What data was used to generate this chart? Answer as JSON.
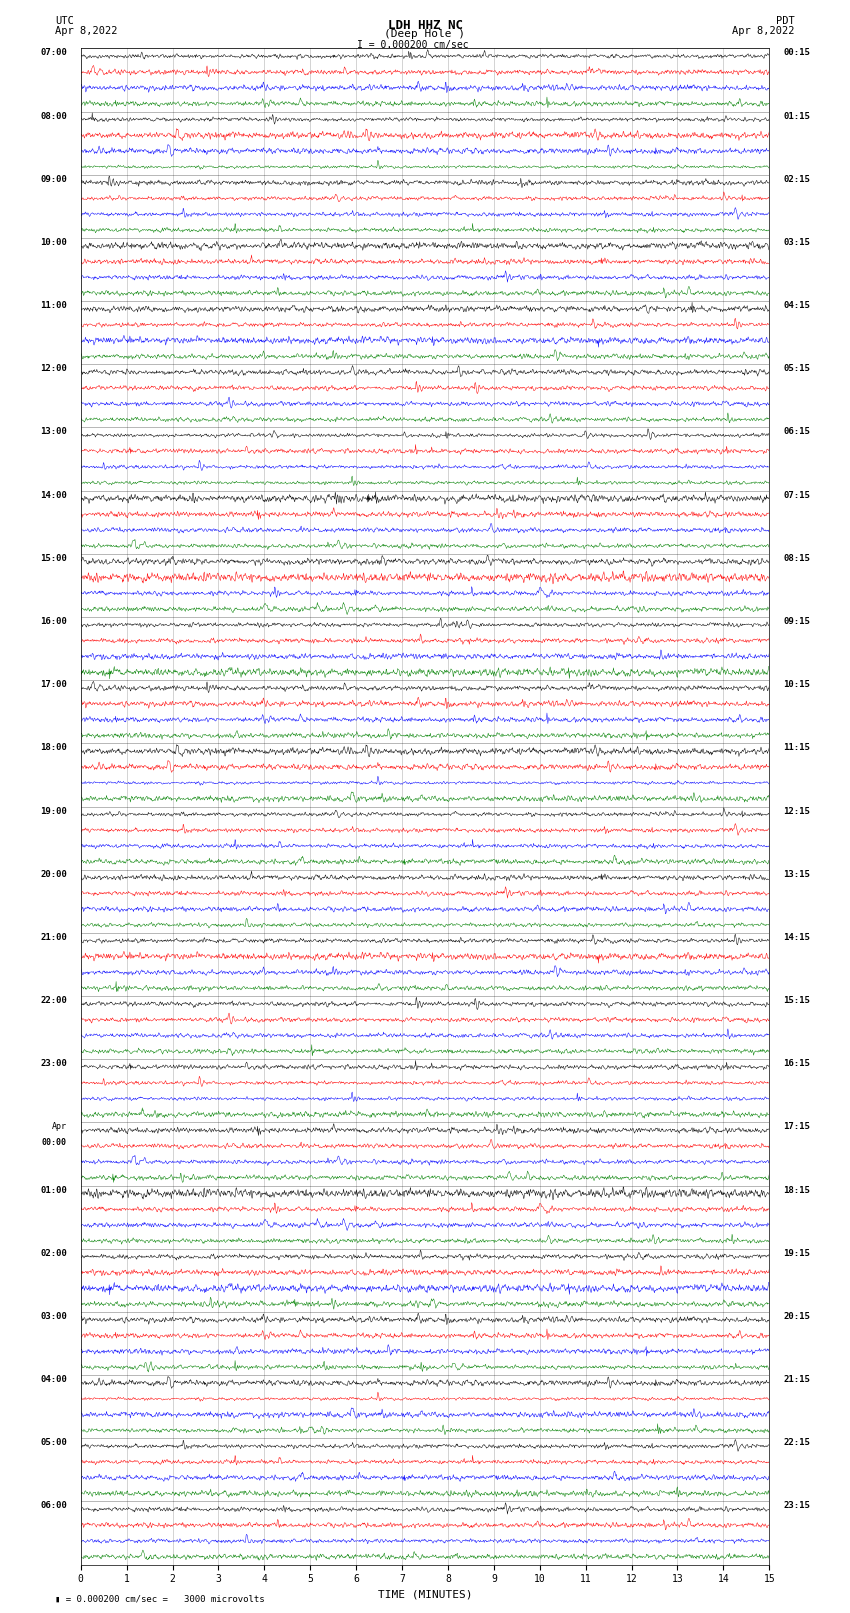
{
  "title_line1": "LDH HHZ NC",
  "title_line2": "(Deep Hole )",
  "scale_text": "= 0.000200 cm/sec",
  "bottom_text": "= 0.000200 cm/sec =   3000 microvolts",
  "left_header": "UTC",
  "left_date": "Apr 8,2022",
  "right_header": "PDT",
  "right_date": "Apr 8,2022",
  "xlabel": "TIME (MINUTES)",
  "num_rows": 24,
  "traces_per_row": 4,
  "trace_colors": [
    "black",
    "red",
    "blue",
    "green"
  ],
  "time_minutes": 15,
  "background_color": "white",
  "figwidth": 8.5,
  "figheight": 16.13,
  "dpi": 100,
  "left_time_labels": [
    "07:00",
    "08:00",
    "09:00",
    "10:00",
    "11:00",
    "12:00",
    "13:00",
    "14:00",
    "15:00",
    "16:00",
    "17:00",
    "18:00",
    "19:00",
    "20:00",
    "21:00",
    "22:00",
    "23:00",
    "Apr\n00:00",
    "01:00",
    "02:00",
    "03:00",
    "04:00",
    "05:00",
    "06:00"
  ],
  "right_time_labels": [
    "00:15",
    "01:15",
    "02:15",
    "03:15",
    "04:15",
    "05:15",
    "06:15",
    "07:15",
    "08:15",
    "09:15",
    "10:15",
    "11:15",
    "12:15",
    "13:15",
    "14:15",
    "15:15",
    "16:15",
    "17:15",
    "18:15",
    "19:15",
    "20:15",
    "21:15",
    "22:15",
    "23:15"
  ]
}
